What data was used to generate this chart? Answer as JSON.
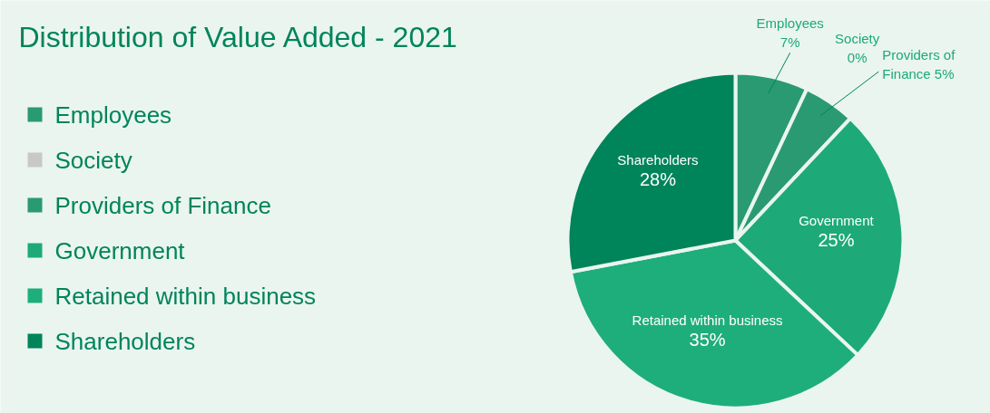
{
  "chart_data": {
    "type": "pie",
    "title": "Distribution of Value Added - 2021",
    "categories": [
      "Employees",
      "Society",
      "Providers of Finance",
      "Government",
      "Retained within business",
      "Shareholders"
    ],
    "values": [
      7,
      0,
      5,
      25,
      35,
      28
    ],
    "value_labels": [
      "7%",
      "0%",
      "5%",
      "25%",
      "35%",
      "28%"
    ],
    "colors": [
      "#2a9a72",
      "#c8c8c8",
      "#2a9a72",
      "#1daa78",
      "#1eae7b",
      "#00845a"
    ],
    "legend": "left"
  }
}
